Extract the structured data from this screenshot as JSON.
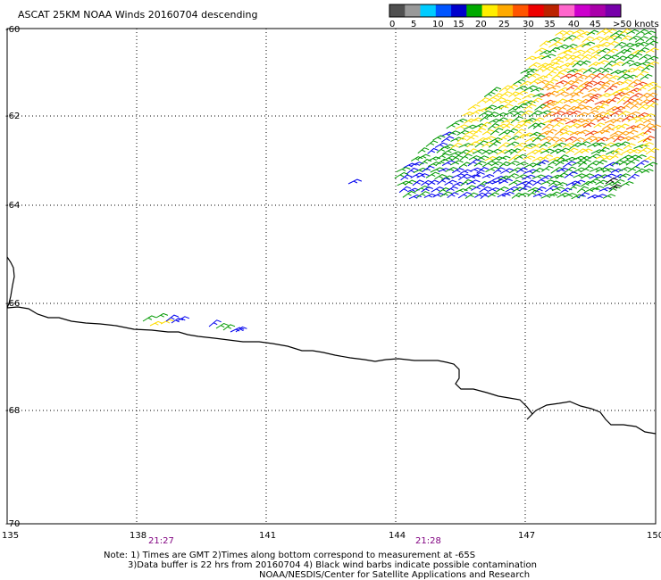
{
  "title": "ASCAT 25KM NOAA Winds 20160704 descending",
  "legend": {
    "labels": [
      "0",
      "5",
      "10",
      "15",
      "20",
      "25",
      "30",
      "35",
      "40",
      "45",
      ">50 knots"
    ],
    "colors": [
      "#505050",
      "#999999",
      "#00ccff",
      "#0055ff",
      "#0000cc",
      "#00aa00",
      "#ffee00",
      "#ffaa00",
      "#ff5500",
      "#ee0000",
      "#bb2200",
      "#ff66cc",
      "#cc00cc",
      "#aa00aa",
      "#7700aa"
    ]
  },
  "axes": {
    "lon_ticks": [
      "135",
      "138",
      "141",
      "144",
      "147",
      "150"
    ],
    "lat_ticks": [
      "-60",
      "-62",
      "-64",
      "-66",
      "-68",
      "-70"
    ]
  },
  "times": [
    "21:27",
    "21:28"
  ],
  "notes": [
    "Note: 1) Times are GMT 2)Times along bottom correspond to measurement at -65S",
    "3)Data buffer is 22 hrs from 20160704 4) Black wind barbs indicate possible contamination",
    "NOAA/NESDIS/Center for Satellite Applications and Research"
  ],
  "barb_palette": {
    "blue": "#0000ee",
    "green": "#009900",
    "yellow": "#ffdd00",
    "orange": "#ff9900",
    "red": "#ee3300",
    "black": "#000000"
  }
}
